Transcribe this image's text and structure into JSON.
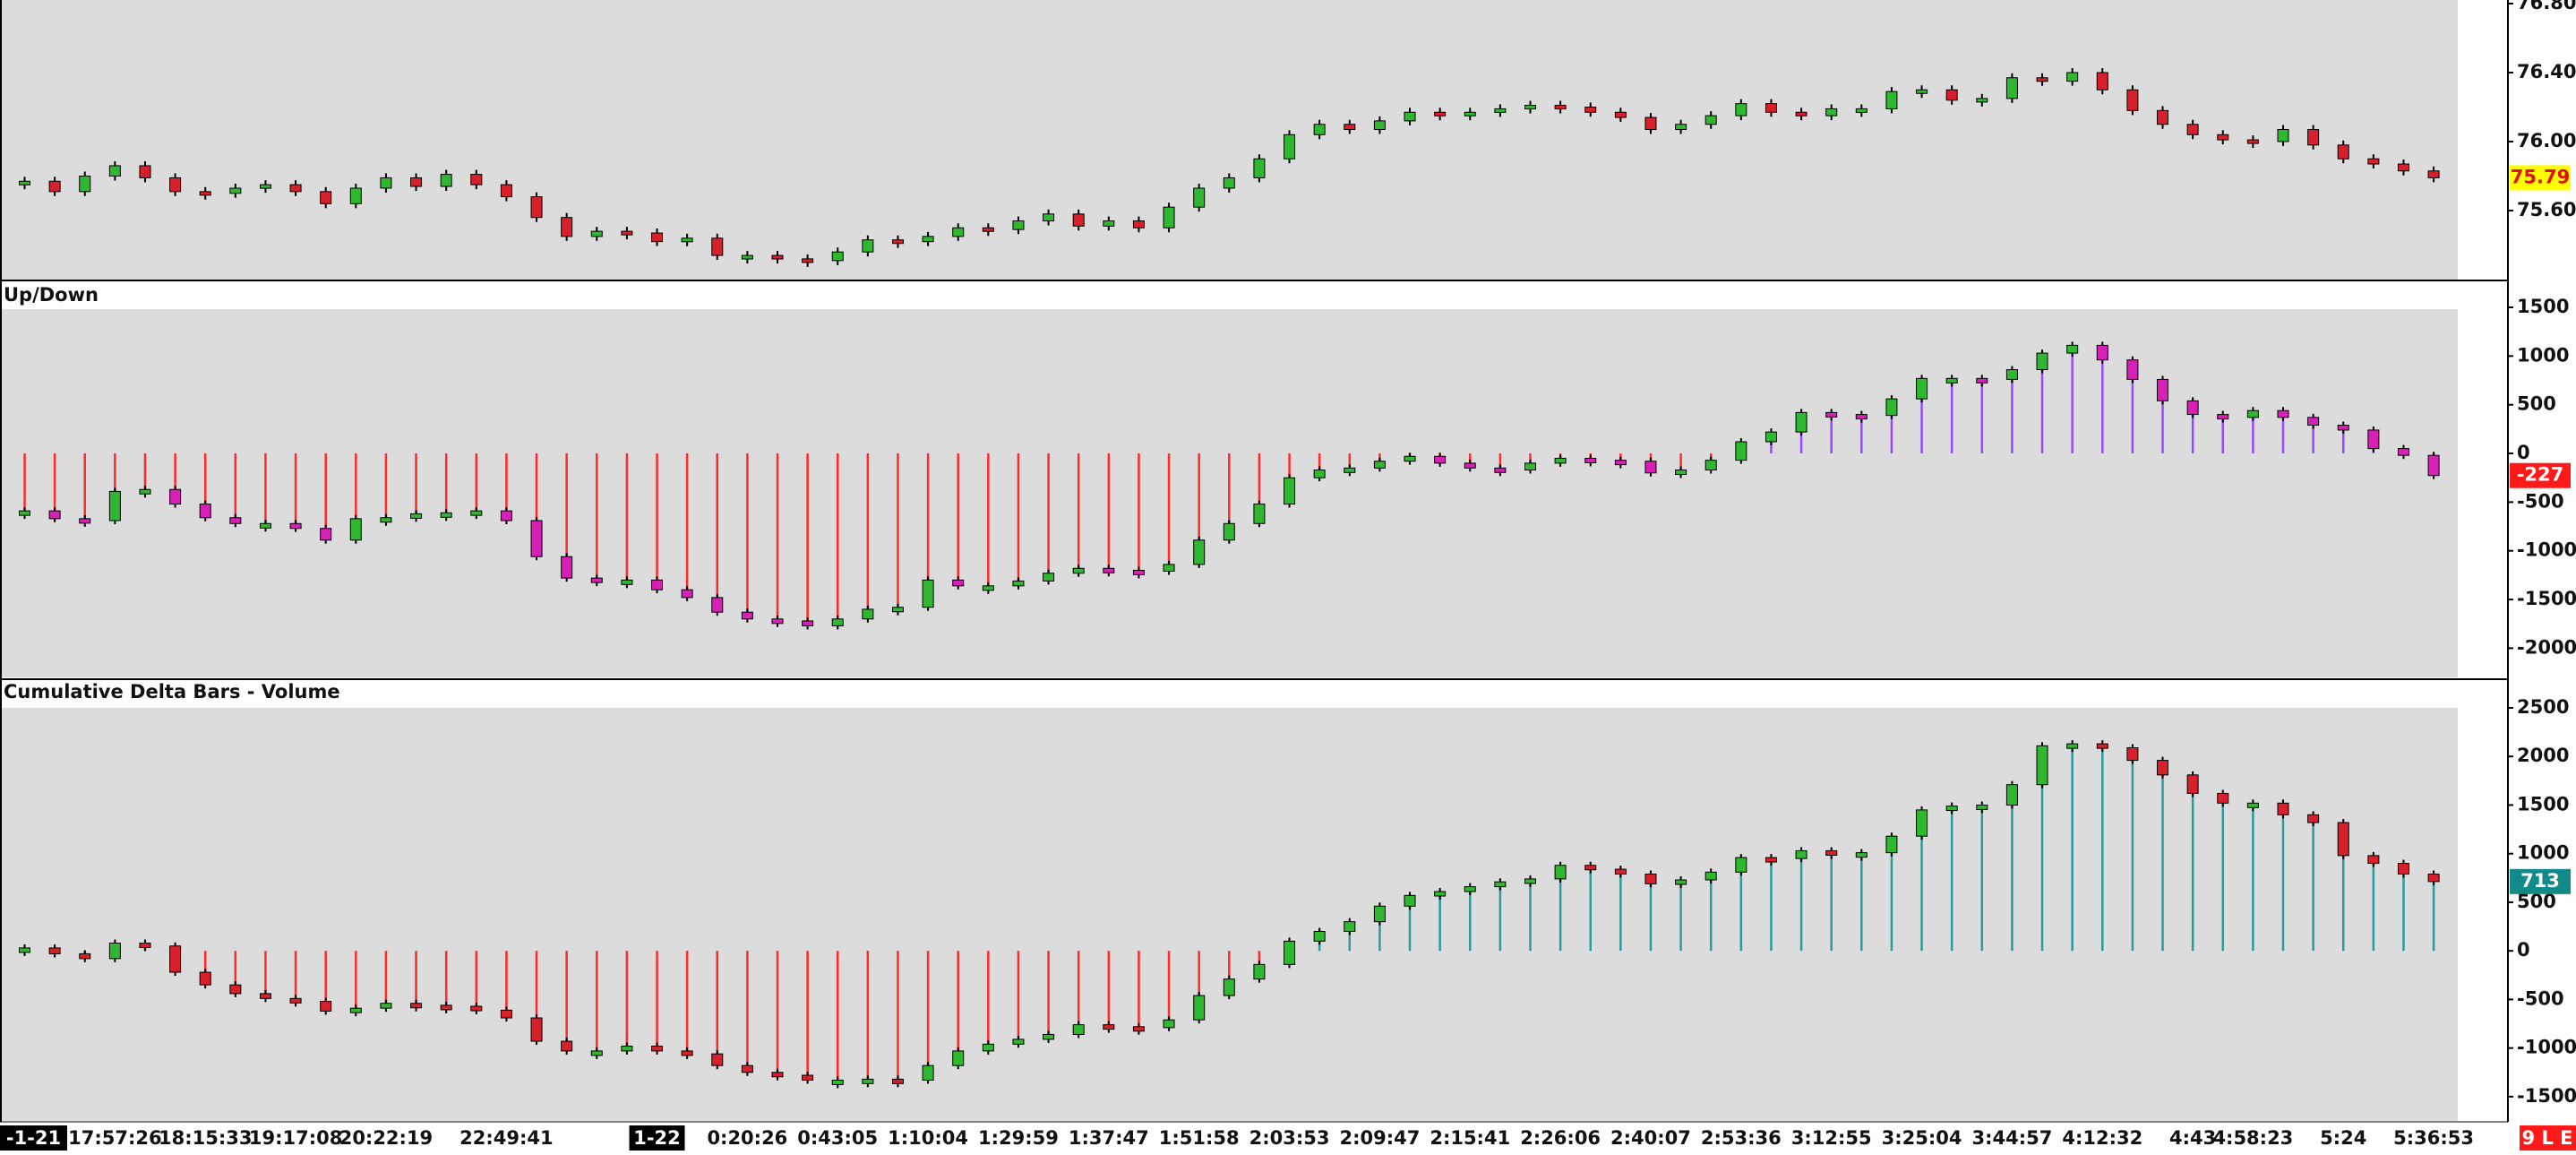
{
  "chart_data": [
    {
      "type": "candlestick",
      "values": [
        75.77,
        75.71,
        75.8,
        75.86,
        75.79,
        75.71,
        75.7,
        75.73,
        75.75,
        75.71,
        75.64,
        75.73,
        75.79,
        75.74,
        75.81,
        75.75,
        75.68,
        75.56,
        75.45,
        75.48,
        75.47,
        75.42,
        75.44,
        75.34,
        75.34,
        75.32,
        75.31,
        75.36,
        75.43,
        75.42,
        75.45,
        75.5,
        75.49,
        75.54,
        75.58,
        75.51,
        75.54,
        75.5,
        75.62,
        75.73,
        75.79,
        75.9,
        76.04,
        76.1,
        76.07,
        76.12,
        76.17,
        76.15,
        76.17,
        76.19,
        76.21,
        76.2,
        76.17,
        76.14,
        76.07,
        76.1,
        76.15,
        76.22,
        76.17,
        76.15,
        76.19,
        76.19,
        76.29,
        76.3,
        76.24,
        76.25,
        76.37,
        76.35,
        76.4,
        76.3,
        76.18,
        76.1,
        76.04,
        76.01,
        76.0,
        76.07,
        75.98,
        75.9,
        75.87,
        75.83,
        75.79
      ],
      "ylim": [
        75.2,
        76.8
      ],
      "yticks": [
        {
          "value": 75.6,
          "label": "75.60"
        },
        {
          "value": 76,
          "label": "76.00"
        },
        {
          "value": 76.4,
          "label": "76.40"
        },
        {
          "value": 76.8,
          "label": "76.80"
        }
      ],
      "colors": {
        "up": "#2fb82f",
        "down": "#d8202a",
        "last_bg": "#ffff00",
        "last_text": "#e01010"
      }
    },
    {
      "type": "delta",
      "title": "Up/Down",
      "values": [
        -590,
        -670,
        -690,
        -390,
        -370,
        -520,
        -660,
        -720,
        -720,
        -770,
        -890,
        -670,
        -660,
        -620,
        -610,
        -590,
        -690,
        -1060,
        -1280,
        -1300,
        -1300,
        -1400,
        -1480,
        -1630,
        -1700,
        -1720,
        -1770,
        -1700,
        -1600,
        -1580,
        -1300,
        -1360,
        -1360,
        -1310,
        -1230,
        -1180,
        -1200,
        -1210,
        -1140,
        -890,
        -720,
        -520,
        -250,
        -170,
        -150,
        -80,
        -30,
        -100,
        -150,
        -170,
        -100,
        -50,
        -70,
        -80,
        -200,
        -170,
        -70,
        120,
        220,
        420,
        400,
        390,
        560,
        770,
        770,
        760,
        860,
        1030,
        1110,
        960,
        760,
        540,
        400,
        370,
        440,
        370,
        290,
        240,
        50,
        -20,
        -227
      ],
      "ylim": [
        -2300,
        1500
      ],
      "yticks": [
        1500,
        1000,
        500,
        0,
        -500,
        -1000,
        -1500,
        -2000
      ],
      "colors": {
        "up": "#2fb82f",
        "down": "#d81fb8",
        "bar_pos": "#9a48ff",
        "bar_neg": "#ff2a2a",
        "last_bg": "#ff1a1a",
        "last_text": "#ffffff"
      }
    },
    {
      "type": "delta",
      "title": "Cumulative Delta Bars - Volume",
      "values": [
        30,
        -30,
        -80,
        80,
        50,
        -220,
        -350,
        -440,
        -490,
        -520,
        -620,
        -590,
        -540,
        -560,
        -570,
        -610,
        -690,
        -930,
        -1030,
        -1030,
        -980,
        -1030,
        -1060,
        -1180,
        -1250,
        -1280,
        -1330,
        -1330,
        -1320,
        -1330,
        -1180,
        -1030,
        -960,
        -910,
        -860,
        -760,
        -780,
        -790,
        -710,
        -460,
        -290,
        -140,
        100,
        200,
        300,
        460,
        570,
        610,
        660,
        710,
        740,
        880,
        840,
        790,
        690,
        730,
        810,
        960,
        950,
        1030,
        1010,
        1010,
        1180,
        1450,
        1490,
        1500,
        1710,
        2110,
        2130,
        2090,
        1960,
        1810,
        1620,
        1520,
        1520,
        1400,
        1320,
        980,
        900,
        790,
        713
      ],
      "ylim": [
        -1750,
        2500
      ],
      "yticks": [
        2500,
        2000,
        1500,
        1000,
        500,
        0,
        -500,
        -1000,
        -1500
      ],
      "colors": {
        "up": "#2fb82f",
        "down": "#d8202a",
        "bar_pos": "#2a9a9a",
        "bar_neg": "#ff2a2a",
        "last_bg": "#138a8a",
        "last_text": "#ffffff"
      },
      "categories": [
        "-1-21",
        null,
        null,
        "17:57:26",
        null,
        null,
        "18:15:33",
        null,
        null,
        "19:17:08",
        null,
        null,
        "20:22:19",
        null,
        null,
        null,
        "22:49:41",
        null,
        null,
        null,
        null,
        "1-22",
        null,
        null,
        "0:20:26",
        null,
        null,
        "0:43:05",
        null,
        null,
        "1:10:04",
        null,
        null,
        "1:29:59",
        null,
        null,
        "1:37:47",
        null,
        null,
        "1:51:58",
        null,
        null,
        "2:03:53",
        null,
        null,
        "2:09:47",
        null,
        null,
        "2:15:41",
        null,
        null,
        "2:26:06",
        null,
        null,
        "2:40:07",
        null,
        null,
        "2:53:36",
        null,
        null,
        "3:12:55",
        null,
        null,
        "3:25:04",
        null,
        null,
        "3:44:57",
        null,
        null,
        "4:12:32",
        null,
        null,
        "4:43",
        null,
        "4:58:23",
        null,
        null,
        "5:24",
        null,
        null,
        "5:36:53"
      ]
    }
  ],
  "status": "9 L E"
}
